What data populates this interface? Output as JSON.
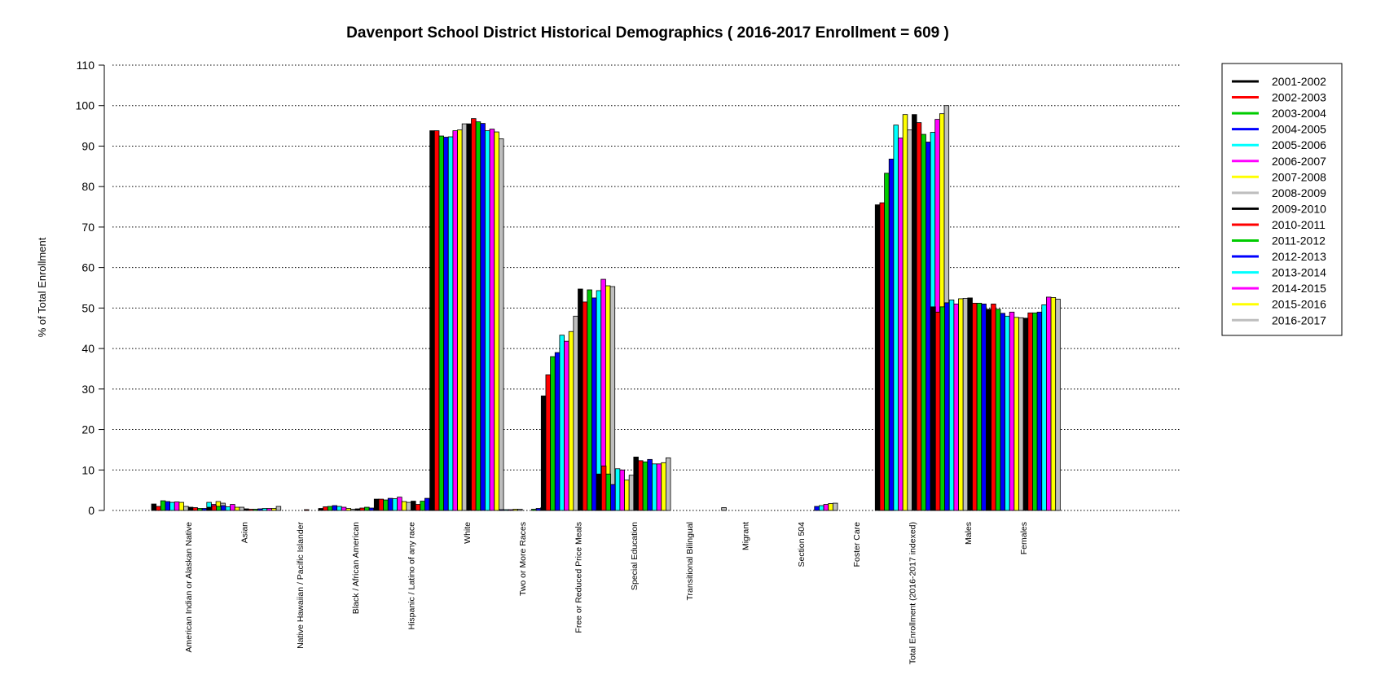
{
  "chart_data": {
    "type": "bar",
    "title": "Davenport School District Historical Demographics  ( 2016-2017 Enrollment =  609 )",
    "xlabel": "",
    "ylabel": "% of Total Enrollment",
    "ylim": [
      0,
      110
    ],
    "yticks": [
      0,
      10,
      20,
      30,
      40,
      50,
      60,
      70,
      80,
      90,
      100,
      110
    ],
    "grid": "horizontal-dotted",
    "legend_position": "right",
    "categories": [
      "American Indian or Alaskan Native",
      "Asian",
      "Native Hawaiian / Pacific Islander",
      "Black / African American",
      "Hispanic / Latino of any race",
      "White",
      "Two or More Races",
      "Free or Reduced Price Meals",
      "Special Education",
      "Transitional Bilingual",
      "Migrant",
      "Section 504",
      "Foster Care",
      "Total Enrollment (2016-2017 indexed)",
      "Males",
      "Females"
    ],
    "series": [
      {
        "name": "2001-2002",
        "color": "#000000",
        "values": [
          1.6,
          0.8,
          0.0,
          0.5,
          2.8,
          93.8,
          0.0,
          28.3,
          9.0,
          0.0,
          0.0,
          0.0,
          0.0,
          75.5,
          50.3,
          49.7
        ]
      },
      {
        "name": "2002-2003",
        "color": "#ff0000",
        "values": [
          1.0,
          1.2,
          0.0,
          0.9,
          2.8,
          93.8,
          0.0,
          33.5,
          11.0,
          0.0,
          0.0,
          0.0,
          0.0,
          76.0,
          49.0,
          51.0
        ]
      },
      {
        "name": "2003-2004",
        "color": "#00cc00",
        "values": [
          2.4,
          1.0,
          0.0,
          1.0,
          2.6,
          92.5,
          0.0,
          38.0,
          9.0,
          0.0,
          0.0,
          0.0,
          0.0,
          83.3,
          50.3,
          49.7
        ]
      },
      {
        "name": "2004-2005",
        "color": "#0000ff",
        "values": [
          2.2,
          1.2,
          0.0,
          1.2,
          3.0,
          92.2,
          0.2,
          39.0,
          6.4,
          0.0,
          0.0,
          0.0,
          0.0,
          86.8,
          51.3,
          48.7
        ]
      },
      {
        "name": "2005-2006",
        "color": "#00ffff",
        "values": [
          2.0,
          0.9,
          0.0,
          1.0,
          2.9,
          92.3,
          0.2,
          43.3,
          10.3,
          0.0,
          0.0,
          0.0,
          0.0,
          95.2,
          52.0,
          48.0
        ]
      },
      {
        "name": "2006-2007",
        "color": "#ff00ff",
        "values": [
          2.1,
          1.5,
          0.0,
          0.8,
          3.3,
          93.8,
          0.2,
          41.8,
          10.0,
          0.0,
          0.0,
          0.0,
          0.0,
          92.0,
          51.0,
          49.0
        ]
      },
      {
        "name": "2007-2008",
        "color": "#ffff00",
        "values": [
          2.0,
          0.8,
          0.0,
          0.5,
          2.2,
          94.0,
          0.3,
          44.2,
          7.5,
          0.0,
          0.0,
          0.0,
          0.0,
          97.8,
          52.3,
          47.7
        ]
      },
      {
        "name": "2008-2009",
        "color": "#bebebe",
        "values": [
          1.0,
          0.8,
          0.0,
          0.3,
          2.0,
          95.5,
          0.3,
          48.0,
          8.7,
          0.0,
          0.0,
          0.0,
          0.0,
          94.0,
          52.4,
          47.6
        ]
      },
      {
        "name": "2009-2010",
        "color": "#000000",
        "values": [
          0.8,
          0.4,
          0.0,
          0.4,
          2.3,
          95.5,
          0.0,
          54.7,
          13.2,
          0.0,
          0.0,
          0.0,
          0.0,
          97.8,
          52.5,
          47.5
        ]
      },
      {
        "name": "2010-2011",
        "color": "#ff0000",
        "values": [
          0.7,
          0.3,
          0.2,
          0.6,
          1.5,
          96.8,
          0.0,
          51.5,
          12.3,
          0.0,
          0.0,
          0.0,
          0.0,
          95.8,
          51.2,
          48.8
        ]
      },
      {
        "name": "2011-2012",
        "color": "#00cc00",
        "values": [
          0.5,
          0.3,
          0.0,
          0.8,
          2.3,
          96.0,
          0.3,
          54.5,
          12.0,
          0.0,
          0.0,
          0.0,
          0.0,
          92.9,
          51.2,
          48.8
        ]
      },
      {
        "name": "2012-2013",
        "color": "#0000ff",
        "values": [
          0.5,
          0.4,
          0.0,
          0.6,
          3.0,
          95.6,
          0.5,
          52.5,
          12.6,
          0.0,
          0.0,
          1.0,
          0.0,
          91.0,
          51.0,
          49.0
        ]
      },
      {
        "name": "2013-2014",
        "color": "#00ffff",
        "values": [
          2.0,
          0.5,
          0.0,
          0.5,
          2.8,
          93.8,
          0.7,
          54.3,
          11.5,
          0.0,
          0.0,
          1.2,
          0.0,
          93.4,
          49.2,
          50.8
        ]
      },
      {
        "name": "2014-2015",
        "color": "#ff00ff",
        "values": [
          1.5,
          0.5,
          0.0,
          0.4,
          2.3,
          94.2,
          0.6,
          57.1,
          11.5,
          0.0,
          0.0,
          1.5,
          0.3,
          96.6,
          47.3,
          52.7
        ]
      },
      {
        "name": "2015-2016",
        "color": "#ffff00",
        "values": [
          2.2,
          0.5,
          0.0,
          0.4,
          2.3,
          93.5,
          1.2,
          55.5,
          11.8,
          0.0,
          0.0,
          1.7,
          0.3,
          98.0,
          47.4,
          52.6
        ]
      },
      {
        "name": "2016-2017",
        "color": "#bebebe",
        "values": [
          1.8,
          1.0,
          0.0,
          0.3,
          3.2,
          91.8,
          1.8,
          55.3,
          13.0,
          0.7,
          0.0,
          1.8,
          2.0,
          100.0,
          47.8,
          52.2
        ]
      }
    ]
  }
}
